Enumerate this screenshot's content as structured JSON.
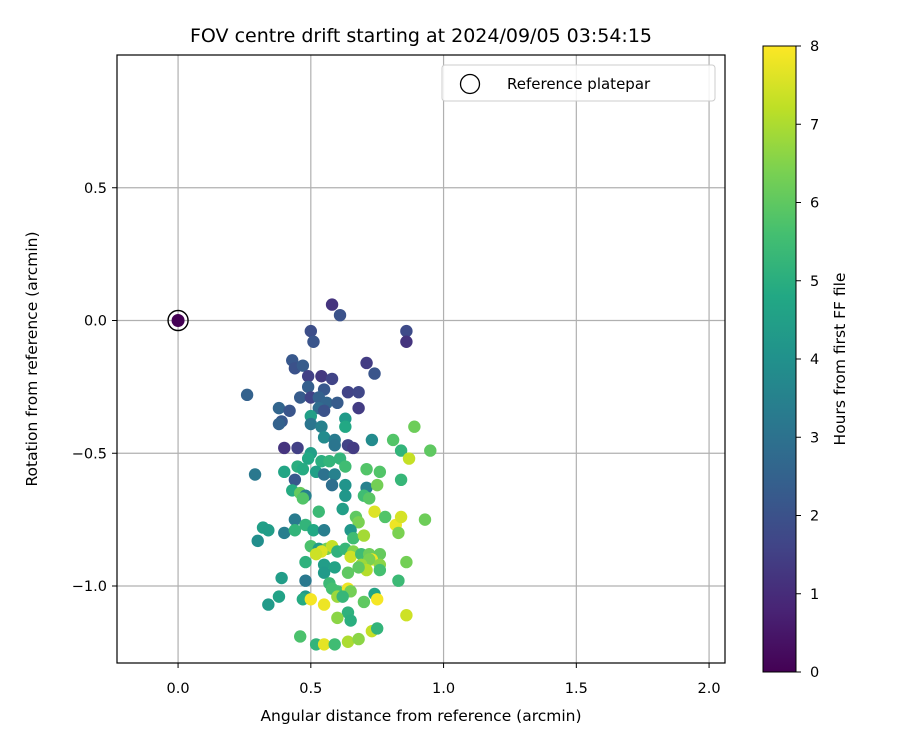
{
  "chart_data": {
    "type": "scatter",
    "title": "FOV centre drift starting at 2024/09/05 03:54:15",
    "xlabel": "Angular distance from reference (arcmin)",
    "ylabel": "Rotation from reference (arcmin)",
    "xlim": [
      -0.23,
      2.06
    ],
    "ylim": [
      -1.29,
      1.0
    ],
    "xticks": [
      0.0,
      0.5,
      1.0,
      1.5,
      2.0
    ],
    "xtick_labels": [
      "0.0",
      "0.5",
      "1.0",
      "1.5",
      "2.0"
    ],
    "yticks": [
      0.5,
      0.0,
      -0.5,
      -1.0
    ],
    "ytick_labels": [
      "0.5",
      "0.0",
      "−0.5",
      "−1.0"
    ],
    "grid": true,
    "legend": {
      "position": "top-right",
      "entries": [
        "Reference platepar"
      ]
    },
    "colorbar": {
      "label": "Hours from first FF file",
      "range": [
        0,
        8
      ],
      "ticks": [
        0,
        1,
        2,
        3,
        4,
        5,
        6,
        7,
        8
      ],
      "tick_labels": [
        "0",
        "1",
        "2",
        "3",
        "4",
        "5",
        "6",
        "7",
        "8"
      ],
      "colormap": "viridis"
    },
    "reference": {
      "x": 0.0,
      "y": 0.0,
      "h": 0.0
    },
    "points": [
      {
        "x": 0.58,
        "y": 0.06,
        "h": 1.2
      },
      {
        "x": 0.61,
        "y": 0.02,
        "h": 2.0
      },
      {
        "x": 0.5,
        "y": -0.04,
        "h": 1.9
      },
      {
        "x": 0.51,
        "y": -0.08,
        "h": 2.1
      },
      {
        "x": 0.86,
        "y": -0.04,
        "h": 1.8
      },
      {
        "x": 0.86,
        "y": -0.08,
        "h": 1.2
      },
      {
        "x": 0.43,
        "y": -0.15,
        "h": 2.2
      },
      {
        "x": 0.44,
        "y": -0.18,
        "h": 2.0
      },
      {
        "x": 0.47,
        "y": -0.17,
        "h": 2.3
      },
      {
        "x": 0.71,
        "y": -0.16,
        "h": 1.4
      },
      {
        "x": 0.74,
        "y": -0.2,
        "h": 2.1
      },
      {
        "x": 0.49,
        "y": -0.21,
        "h": 1.5
      },
      {
        "x": 0.54,
        "y": -0.21,
        "h": 1.3
      },
      {
        "x": 0.58,
        "y": -0.22,
        "h": 1.6
      },
      {
        "x": 0.49,
        "y": -0.25,
        "h": 2.4
      },
      {
        "x": 0.55,
        "y": -0.26,
        "h": 2.2
      },
      {
        "x": 0.64,
        "y": -0.27,
        "h": 1.6
      },
      {
        "x": 0.68,
        "y": -0.27,
        "h": 1.7
      },
      {
        "x": 0.26,
        "y": -0.28,
        "h": 2.5
      },
      {
        "x": 0.46,
        "y": -0.29,
        "h": 2.3
      },
      {
        "x": 0.5,
        "y": -0.29,
        "h": 1.6
      },
      {
        "x": 0.53,
        "y": -0.29,
        "h": 2.5
      },
      {
        "x": 0.56,
        "y": -0.31,
        "h": 2.6
      },
      {
        "x": 0.6,
        "y": -0.31,
        "h": 2.3
      },
      {
        "x": 0.38,
        "y": -0.33,
        "h": 2.6
      },
      {
        "x": 0.42,
        "y": -0.34,
        "h": 2.1
      },
      {
        "x": 0.53,
        "y": -0.33,
        "h": 2.8
      },
      {
        "x": 0.55,
        "y": -0.34,
        "h": 2.0
      },
      {
        "x": 0.68,
        "y": -0.33,
        "h": 1.4
      },
      {
        "x": 0.5,
        "y": -0.36,
        "h": 4.5
      },
      {
        "x": 0.39,
        "y": -0.38,
        "h": 2.2
      },
      {
        "x": 0.38,
        "y": -0.39,
        "h": 2.5
      },
      {
        "x": 0.5,
        "y": -0.39,
        "h": 3.1
      },
      {
        "x": 0.54,
        "y": -0.4,
        "h": 3.5
      },
      {
        "x": 0.63,
        "y": -0.37,
        "h": 4.3
      },
      {
        "x": 0.63,
        "y": -0.4,
        "h": 4.8
      },
      {
        "x": 0.55,
        "y": -0.44,
        "h": 3.8
      },
      {
        "x": 0.59,
        "y": -0.45,
        "h": 3.3
      },
      {
        "x": 0.73,
        "y": -0.45,
        "h": 3.8
      },
      {
        "x": 0.4,
        "y": -0.48,
        "h": 1.2
      },
      {
        "x": 0.45,
        "y": -0.48,
        "h": 1.5
      },
      {
        "x": 0.59,
        "y": -0.47,
        "h": 3.1
      },
      {
        "x": 0.64,
        "y": -0.47,
        "h": 1.6
      },
      {
        "x": 0.66,
        "y": -0.48,
        "h": 1.4
      },
      {
        "x": 0.81,
        "y": -0.45,
        "h": 5.8
      },
      {
        "x": 0.84,
        "y": -0.49,
        "h": 5.2
      },
      {
        "x": 0.89,
        "y": -0.4,
        "h": 6.2
      },
      {
        "x": 0.95,
        "y": -0.49,
        "h": 6.0
      },
      {
        "x": 0.5,
        "y": -0.5,
        "h": 4.5
      },
      {
        "x": 0.49,
        "y": -0.52,
        "h": 4.8
      },
      {
        "x": 0.54,
        "y": -0.53,
        "h": 5.0
      },
      {
        "x": 0.57,
        "y": -0.53,
        "h": 5.2
      },
      {
        "x": 0.61,
        "y": -0.52,
        "h": 5.2
      },
      {
        "x": 0.63,
        "y": -0.55,
        "h": 5.5
      },
      {
        "x": 0.45,
        "y": -0.55,
        "h": 5.0
      },
      {
        "x": 0.47,
        "y": -0.56,
        "h": 4.9
      },
      {
        "x": 0.52,
        "y": -0.57,
        "h": 4.5
      },
      {
        "x": 0.55,
        "y": -0.58,
        "h": 3.0
      },
      {
        "x": 0.59,
        "y": -0.58,
        "h": 3.5
      },
      {
        "x": 0.29,
        "y": -0.58,
        "h": 3.2
      },
      {
        "x": 0.4,
        "y": -0.57,
        "h": 4.7
      },
      {
        "x": 0.44,
        "y": -0.6,
        "h": 2.2
      },
      {
        "x": 0.71,
        "y": -0.56,
        "h": 5.8
      },
      {
        "x": 0.76,
        "y": -0.57,
        "h": 5.8
      },
      {
        "x": 0.84,
        "y": -0.6,
        "h": 5.3
      },
      {
        "x": 0.87,
        "y": -0.52,
        "h": 7.3
      },
      {
        "x": 0.58,
        "y": -0.62,
        "h": 2.9
      },
      {
        "x": 0.63,
        "y": -0.62,
        "h": 4.1
      },
      {
        "x": 0.71,
        "y": -0.63,
        "h": 3.5
      },
      {
        "x": 0.75,
        "y": -0.62,
        "h": 6.3
      },
      {
        "x": 0.43,
        "y": -0.64,
        "h": 4.9
      },
      {
        "x": 0.46,
        "y": -0.65,
        "h": 6.1
      },
      {
        "x": 0.48,
        "y": -0.66,
        "h": 3.5
      },
      {
        "x": 0.47,
        "y": -0.67,
        "h": 5.8
      },
      {
        "x": 0.63,
        "y": -0.66,
        "h": 4.2
      },
      {
        "x": 0.7,
        "y": -0.66,
        "h": 5.5
      },
      {
        "x": 0.72,
        "y": -0.67,
        "h": 5.9
      },
      {
        "x": 0.62,
        "y": -0.71,
        "h": 4.5
      },
      {
        "x": 0.53,
        "y": -0.72,
        "h": 5.4
      },
      {
        "x": 0.44,
        "y": -0.75,
        "h": 3.3
      },
      {
        "x": 0.48,
        "y": -0.77,
        "h": 5.2
      },
      {
        "x": 0.67,
        "y": -0.74,
        "h": 6.0
      },
      {
        "x": 0.68,
        "y": -0.76,
        "h": 6.4
      },
      {
        "x": 0.74,
        "y": -0.72,
        "h": 7.6
      },
      {
        "x": 0.78,
        "y": -0.74,
        "h": 5.8
      },
      {
        "x": 0.82,
        "y": -0.77,
        "h": 7.8
      },
      {
        "x": 0.84,
        "y": -0.74,
        "h": 7.5
      },
      {
        "x": 0.83,
        "y": -0.8,
        "h": 6.4
      },
      {
        "x": 0.93,
        "y": -0.75,
        "h": 6.2
      },
      {
        "x": 0.32,
        "y": -0.78,
        "h": 4.5
      },
      {
        "x": 0.34,
        "y": -0.79,
        "h": 4.4
      },
      {
        "x": 0.4,
        "y": -0.8,
        "h": 3.4
      },
      {
        "x": 0.44,
        "y": -0.79,
        "h": 5.2
      },
      {
        "x": 0.51,
        "y": -0.79,
        "h": 4.8
      },
      {
        "x": 0.55,
        "y": -0.79,
        "h": 3.4
      },
      {
        "x": 0.65,
        "y": -0.79,
        "h": 4.2
      },
      {
        "x": 0.66,
        "y": -0.82,
        "h": 5.5
      },
      {
        "x": 0.7,
        "y": -0.81,
        "h": 6.9
      },
      {
        "x": 0.3,
        "y": -0.83,
        "h": 3.9
      },
      {
        "x": 0.5,
        "y": -0.85,
        "h": 5.7
      },
      {
        "x": 0.53,
        "y": -0.86,
        "h": 4.4
      },
      {
        "x": 0.56,
        "y": -0.86,
        "h": 6.3
      },
      {
        "x": 0.58,
        "y": -0.85,
        "h": 7.3
      },
      {
        "x": 0.54,
        "y": -0.87,
        "h": 7.6
      },
      {
        "x": 0.52,
        "y": -0.88,
        "h": 7.4
      },
      {
        "x": 0.6,
        "y": -0.87,
        "h": 5.1
      },
      {
        "x": 0.63,
        "y": -0.86,
        "h": 5.3
      },
      {
        "x": 0.66,
        "y": -0.87,
        "h": 6.5
      },
      {
        "x": 0.65,
        "y": -0.89,
        "h": 7.4
      },
      {
        "x": 0.69,
        "y": -0.88,
        "h": 5.5
      },
      {
        "x": 0.72,
        "y": -0.88,
        "h": 6.2
      },
      {
        "x": 0.76,
        "y": -0.88,
        "h": 6.1
      },
      {
        "x": 0.73,
        "y": -0.9,
        "h": 7.8
      },
      {
        "x": 0.72,
        "y": -0.9,
        "h": 6.4
      },
      {
        "x": 0.76,
        "y": -0.92,
        "h": 6.6
      },
      {
        "x": 0.86,
        "y": -0.91,
        "h": 6.3
      },
      {
        "x": 0.48,
        "y": -0.91,
        "h": 5.1
      },
      {
        "x": 0.55,
        "y": -0.92,
        "h": 4.4
      },
      {
        "x": 0.59,
        "y": -0.93,
        "h": 4.6
      },
      {
        "x": 0.69,
        "y": -0.92,
        "h": 6.8
      },
      {
        "x": 0.71,
        "y": -0.94,
        "h": 7.1
      },
      {
        "x": 0.68,
        "y": -0.93,
        "h": 6.0
      },
      {
        "x": 0.76,
        "y": -0.94,
        "h": 5.6
      },
      {
        "x": 0.55,
        "y": -0.95,
        "h": 4.3
      },
      {
        "x": 0.64,
        "y": -0.95,
        "h": 6.0
      },
      {
        "x": 0.39,
        "y": -0.97,
        "h": 4.4
      },
      {
        "x": 0.48,
        "y": -0.98,
        "h": 3.2
      },
      {
        "x": 0.57,
        "y": -0.99,
        "h": 5.4
      },
      {
        "x": 0.58,
        "y": -1.01,
        "h": 5.6
      },
      {
        "x": 0.6,
        "y": -1.02,
        "h": 5.6
      },
      {
        "x": 0.64,
        "y": -1.01,
        "h": 7.8
      },
      {
        "x": 0.65,
        "y": -1.02,
        "h": 6.3
      },
      {
        "x": 0.83,
        "y": -0.98,
        "h": 5.4
      },
      {
        "x": 0.38,
        "y": -1.04,
        "h": 4.6
      },
      {
        "x": 0.48,
        "y": -1.04,
        "h": 4.3
      },
      {
        "x": 0.6,
        "y": -1.04,
        "h": 6.8
      },
      {
        "x": 0.62,
        "y": -1.04,
        "h": 5.3
      },
      {
        "x": 0.74,
        "y": -1.03,
        "h": 4.7
      },
      {
        "x": 0.75,
        "y": -1.05,
        "h": 7.9
      },
      {
        "x": 0.7,
        "y": -1.06,
        "h": 6.0
      },
      {
        "x": 0.34,
        "y": -1.07,
        "h": 4.3
      },
      {
        "x": 0.47,
        "y": -1.05,
        "h": 4.9
      },
      {
        "x": 0.5,
        "y": -1.05,
        "h": 7.9
      },
      {
        "x": 0.55,
        "y": -1.07,
        "h": 7.8
      },
      {
        "x": 0.64,
        "y": -1.1,
        "h": 5.1
      },
      {
        "x": 0.86,
        "y": -1.11,
        "h": 7.4
      },
      {
        "x": 0.6,
        "y": -1.12,
        "h": 6.6
      },
      {
        "x": 0.65,
        "y": -1.13,
        "h": 5.0
      },
      {
        "x": 0.73,
        "y": -1.17,
        "h": 7.3
      },
      {
        "x": 0.75,
        "y": -1.16,
        "h": 5.2
      },
      {
        "x": 0.46,
        "y": -1.19,
        "h": 5.7
      },
      {
        "x": 0.52,
        "y": -1.22,
        "h": 5.2
      },
      {
        "x": 0.55,
        "y": -1.22,
        "h": 7.7
      },
      {
        "x": 0.59,
        "y": -1.22,
        "h": 5.5
      },
      {
        "x": 0.64,
        "y": -1.21,
        "h": 7.0
      },
      {
        "x": 0.68,
        "y": -1.2,
        "h": 6.6
      }
    ]
  }
}
